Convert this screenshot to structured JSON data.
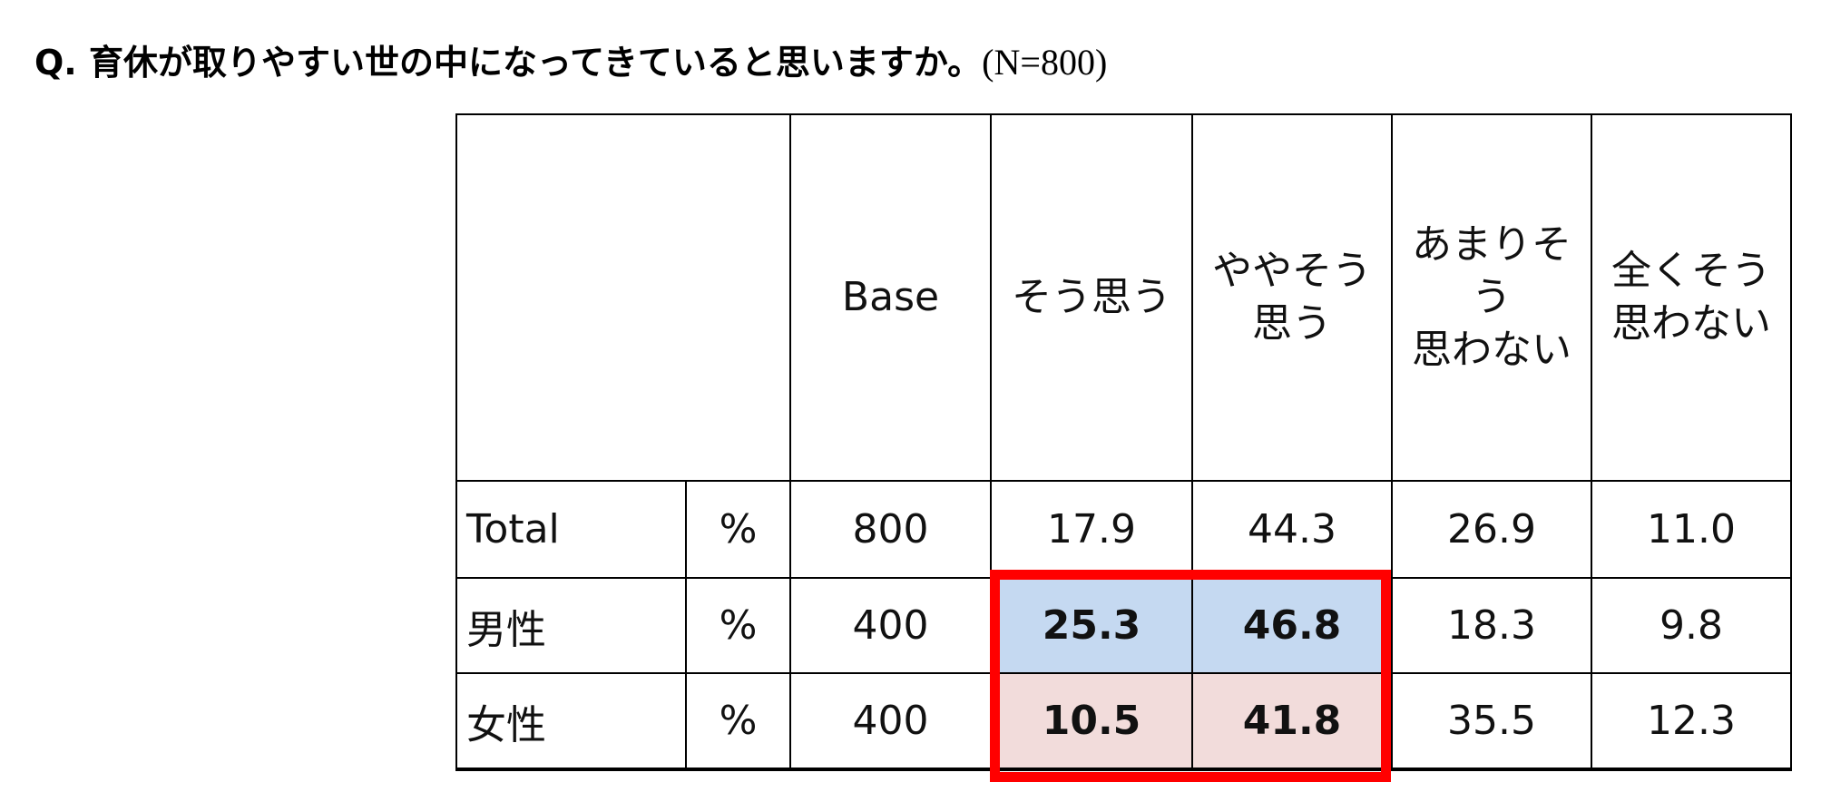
{
  "title": {
    "question": "Q. 育休が取りやすい世の中になってきていると思いますか。",
    "n": "(N=800)"
  },
  "table": {
    "header": [
      [
        "Base"
      ],
      [
        "そう思う"
      ],
      [
        "ややそう",
        "思う"
      ],
      [
        "あまりそう",
        "思わない"
      ],
      [
        "全くそう",
        "思わない"
      ]
    ],
    "rows": [
      [
        "Total",
        "%",
        "800",
        "17.9",
        "44.3",
        "26.9",
        "11.0"
      ],
      [
        "男性",
        "%",
        "400",
        "25.3",
        "46.8",
        "18.3",
        "9.8"
      ],
      [
        "女性",
        "%",
        "400",
        "10.5",
        "41.8",
        "35.5",
        "12.3"
      ]
    ]
  }
}
